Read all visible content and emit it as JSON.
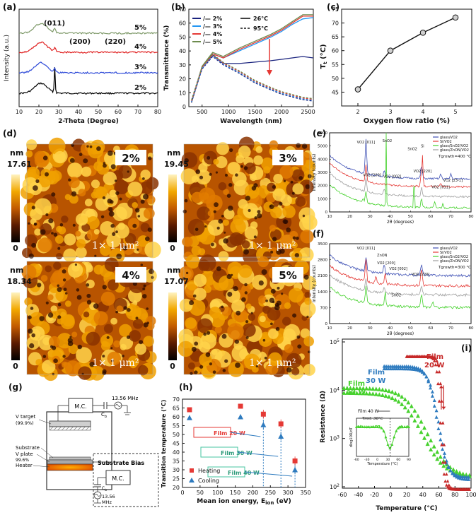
{
  "chart_data": [
    {
      "id": "a",
      "label": "(a)",
      "type": "line",
      "xlabel": "2-Theta (Degree)",
      "ylabel": "Intensity (a.u.)",
      "xlim": [
        10,
        80
      ],
      "xticks": [
        10,
        20,
        30,
        40,
        50,
        60,
        70,
        80
      ],
      "peaks": [
        "(011)",
        "(200)",
        "(220)"
      ],
      "series": [
        {
          "name": "2%",
          "color": "#000000",
          "offset": 0
        },
        {
          "name": "3%",
          "color": "#2f4bd8",
          "offset": 1
        },
        {
          "name": "4%",
          "color": "#e02020",
          "offset": 2
        },
        {
          "name": "5%",
          "color": "#7f9a6a",
          "offset": 3
        }
      ]
    },
    {
      "id": "b",
      "label": "(b)",
      "type": "line",
      "xlabel": "Wavelength (nm)",
      "ylabel": "Transmittance (%)",
      "xlim": [
        250,
        2600
      ],
      "ylim": [
        0,
        70
      ],
      "xticks": [
        500,
        1000,
        1500,
        2000,
        2500
      ],
      "yticks": [
        0,
        10,
        20,
        30,
        40,
        50,
        60,
        70
      ],
      "legend": [
        {
          "name": "/— 2%",
          "color": "#1a237e"
        },
        {
          "name": "/— 3%",
          "color": "#2196f3"
        },
        {
          "name": "/— 4%",
          "color": "#e53935"
        },
        {
          "name": "/— 5%",
          "color": "#6d8b4e"
        }
      ],
      "legend_temp": [
        "26°C",
        "95°C"
      ],
      "series_26C": [
        {
          "name": "2%",
          "color": "#1a237e",
          "x": [
            300,
            500,
            700,
            900,
            1200,
            1500,
            1800,
            2000,
            2200,
            2400,
            2600
          ],
          "y": [
            3,
            28,
            37,
            31,
            31,
            32,
            33,
            34,
            35,
            36,
            35
          ]
        },
        {
          "name": "3%",
          "color": "#2196f3",
          "x": [
            300,
            500,
            700,
            900,
            1200,
            1500,
            1800,
            2000,
            2200,
            2400,
            2600
          ],
          "y": [
            3,
            28,
            38,
            35,
            40,
            45,
            50,
            54,
            59,
            63,
            64
          ]
        },
        {
          "name": "4%",
          "color": "#e53935",
          "x": [
            300,
            500,
            700,
            900,
            1200,
            1500,
            1800,
            2000,
            2200,
            2400,
            2600
          ],
          "y": [
            3,
            28,
            38,
            35,
            41,
            46,
            51,
            55,
            60,
            65,
            65
          ]
        },
        {
          "name": "5%",
          "color": "#6d8b4e",
          "x": [
            300,
            500,
            700,
            900,
            1200,
            1500,
            1800,
            2000,
            2200,
            2400,
            2600
          ],
          "y": [
            3,
            29,
            39,
            36,
            42,
            47,
            52,
            56,
            61,
            66,
            66
          ]
        }
      ],
      "series_95C": {
        "x": [
          300,
          500,
          700,
          900,
          1200,
          1500,
          1800,
          2000,
          2200,
          2400,
          2600
        ],
        "y": [
          3,
          27,
          36,
          30,
          24,
          17,
          12,
          9,
          7,
          5,
          4
        ]
      }
    },
    {
      "id": "c",
      "label": "(c)",
      "type": "line",
      "xlabel": "Oxygen flow ratio (%)",
      "ylabel": "T",
      "ylabel_sub": "t",
      "ylabel_unit": "(°C)",
      "xlim": [
        1.5,
        5.5
      ],
      "ylim": [
        40,
        75
      ],
      "xticks": [
        2,
        3,
        4,
        5
      ],
      "yticks": [
        45,
        50,
        55,
        60,
        65,
        70,
        75
      ],
      "x": [
        2,
        3,
        4,
        5
      ],
      "y": [
        46,
        60,
        66.5,
        72
      ]
    },
    {
      "id": "e",
      "label": "(e)",
      "type": "line",
      "xlabel": "2θ (degrees)",
      "ylabel": "Intensity (counts)",
      "xlim": [
        10,
        80
      ],
      "ylim": [
        0,
        6000
      ],
      "xticks": [
        10,
        20,
        30,
        40,
        50,
        60,
        70,
        80
      ],
      "yticks": [
        0,
        1000,
        2000,
        3000,
        4000,
        5000,
        6000
      ],
      "legend": [
        {
          "name": "glass/VO2",
          "color": "#3f51b5"
        },
        {
          "name": "Si/VO2",
          "color": "#e53935"
        },
        {
          "name": "glass/SnO2/VO2",
          "color": "#43d12a"
        },
        {
          "name": "glass/ZnON/VO2",
          "color": "#9e9e9e"
        }
      ],
      "tgrowth": "Tgrowth=400 °C",
      "annotations": [
        "VO2 [011]",
        "SnO2",
        "SnO2",
        "Si",
        "VO2 [200]",
        "VO2 [002]",
        "VO2 [220]",
        "VO2 [031]",
        "VO2 [23-1]"
      ]
    },
    {
      "id": "f",
      "label": "(f)",
      "type": "line",
      "xlabel": "2θ (degrees)",
      "ylabel": "Intensity (counts)",
      "xlim": [
        10,
        80
      ],
      "ylim": [
        0,
        3500
      ],
      "xticks": [
        10,
        20,
        30,
        40,
        50,
        60,
        70,
        80
      ],
      "yticks": [
        0,
        700,
        1400,
        2100,
        2800,
        3500
      ],
      "legend": [
        {
          "name": "glass/VO2",
          "color": "#3f51b5"
        },
        {
          "name": "Si/VO2",
          "color": "#e53935"
        },
        {
          "name": "glass/SnO2/VO2",
          "color": "#43d12a"
        },
        {
          "name": "glass/ZnON/VO2",
          "color": "#9e9e9e"
        }
      ],
      "tgrowth": "Tgrowth=300 °C",
      "annotations": [
        "VO2 [011]",
        "ZnON",
        "VO2 [200]",
        "VO2 [002]",
        "VO2 [220]",
        "SnO2"
      ]
    },
    {
      "id": "h",
      "label": "(h)",
      "type": "scatter",
      "xlabel": "Mean ion energy, E",
      "xlabel_sub": "ion",
      "xlabel_unit": "(eV)",
      "ylabel": "Transition temperature (°C)",
      "xlim": [
        0,
        350
      ],
      "ylim": [
        20,
        70
      ],
      "xticks": [
        0,
        50,
        100,
        150,
        200,
        250,
        300,
        350
      ],
      "yticks": [
        20,
        25,
        30,
        35,
        40,
        45,
        50,
        55,
        60,
        65,
        70
      ],
      "series": [
        {
          "name": "Heating",
          "color": "#e53935",
          "x": [
            20,
            165,
            230,
            280,
            320
          ],
          "y": [
            64,
            66,
            61.5,
            56,
            35
          ]
        },
        {
          "name": "Cooling",
          "color": "#2e7bbf",
          "x": [
            20,
            165,
            230,
            280,
            320
          ],
          "y": [
            59.5,
            60,
            55.5,
            49,
            30
          ]
        }
      ],
      "films": [
        "Film 20 W",
        "Film 30 W",
        "Film 40 W"
      ]
    },
    {
      "id": "i",
      "label": "(i)",
      "type": "scatter",
      "xlabel": "Temperature (°C)",
      "ylabel": "Resistance (Ω)",
      "xlim": [
        -60,
        100
      ],
      "yscale": "log",
      "xticks": [
        -60,
        -40,
        -20,
        0,
        20,
        40,
        60,
        80,
        100
      ],
      "yticks": [
        "10^2",
        "10^3",
        "10^4",
        "10^5"
      ],
      "films": [
        {
          "name": "Film 20 W",
          "color": "#c62828"
        },
        {
          "name": "Film 30 W",
          "color": "#2e7bbf"
        },
        {
          "name": "Film 40 W",
          "color": "#47d12e"
        }
      ],
      "inset": {
        "title": "Film 40 W",
        "label": "Tmit: 36°C",
        "xlabel": "Temperature (°C)",
        "ylabel": "dlog10R/dT",
        "xticks": [
          -60,
          -30,
          0,
          30,
          60,
          90
        ]
      }
    }
  ],
  "panels": {
    "d": {
      "label": "(d)",
      "scale": "1× 1 μm²",
      "tiles": [
        {
          "name": "2%",
          "max": "17.61",
          "unit": "nm",
          "min": "0"
        },
        {
          "name": "3%",
          "max": "19.45",
          "unit": "nm",
          "min": "0"
        },
        {
          "name": "4%",
          "max": "18.34",
          "unit": "nm",
          "min": "0"
        },
        {
          "name": "5%",
          "max": "17.07",
          "unit": "nm",
          "min": "0"
        }
      ]
    },
    "g": {
      "label": "(g)",
      "rf": "13.56 MHz",
      "mc": "M.C.",
      "cb": "C",
      "cb_sub": "b",
      "target": "V target",
      "target_purity": "(99.9%)",
      "substrate": "Substrate",
      "plate": "V plate",
      "plate_purity": "99.6%",
      "heater": "Heater",
      "bias": "Substrate Bias",
      "mc2": "M.C.",
      "rf2_a": "13.56",
      "rf2_b": "MHz"
    }
  }
}
